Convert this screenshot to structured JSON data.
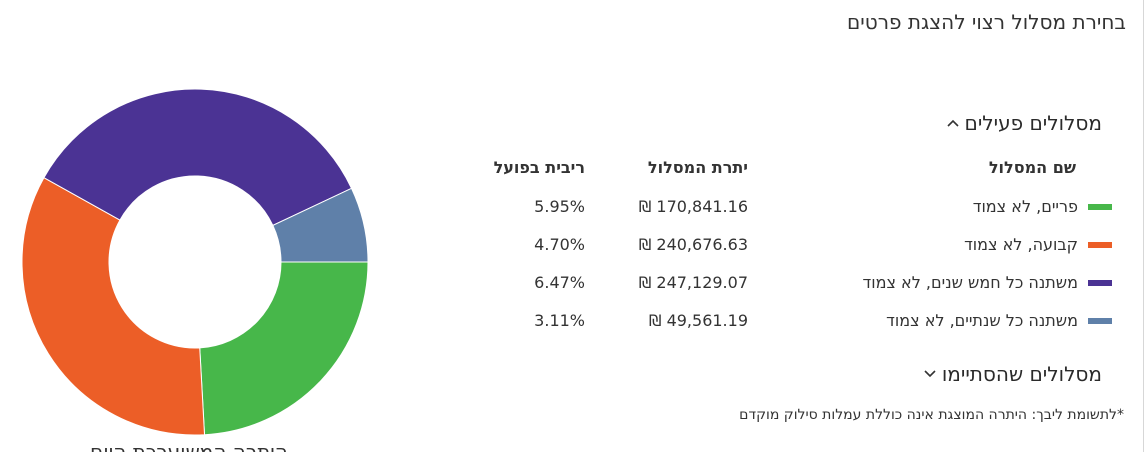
{
  "page": {
    "title": "בחירת מסלול רצוי להצגת פרטים",
    "footnote": "*לתשומת ליבך: היתרה המוצגת אינה כוללת עמלות סילוק מוקדם"
  },
  "active_section": {
    "label": "מסלולים פעילים",
    "expanded": true,
    "chevron_icon": "chevron-up-icon"
  },
  "ended_section": {
    "label": "מסלולים שהסתיימו",
    "expanded": false,
    "chevron_icon": "chevron-down-icon"
  },
  "table": {
    "headers": {
      "name": "שם המסלול",
      "balance": "יתרת המסלול",
      "yield": "ריבית בפועל"
    },
    "rows": [
      {
        "name": "פריים, לא צמוד",
        "balance": "170,841.16 ₪",
        "yield": "5.95%",
        "color": "#47b74a"
      },
      {
        "name": "קבועה, לא צמוד",
        "balance": "240,676.63 ₪",
        "yield": "4.70%",
        "color": "#ec5e27"
      },
      {
        "name": "משתנה כל חמש שנים, לא צמוד",
        "balance": "247,129.07 ₪",
        "yield": "6.47%",
        "color": "#4b3394"
      },
      {
        "name": "משתנה כל שנתיים, לא צמוד",
        "balance": "49,561.19 ₪",
        "yield": "3.11%",
        "color": "#5f80a9"
      }
    ]
  },
  "chart_data": {
    "type": "pie",
    "donut": true,
    "categories": [
      "פריים, לא צמוד",
      "קבועה, לא צמוד",
      "משתנה כל חמש שנים, לא צמוד",
      "משתנה כל שנתיים, לא צמוד"
    ],
    "values": [
      170841.16,
      240676.63,
      247129.07,
      49561.19
    ],
    "colors": [
      "#47b74a",
      "#ec5e27",
      "#4b3394",
      "#5f80a9"
    ],
    "caption": "היתרה המשוערכת היום"
  }
}
